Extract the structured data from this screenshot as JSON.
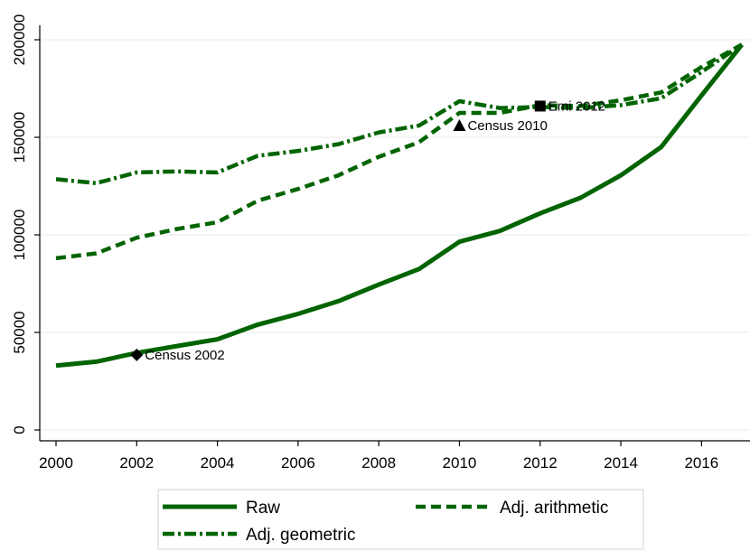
{
  "chart_data": {
    "type": "line",
    "title": "",
    "xlabel": "",
    "ylabel": "",
    "xlim": [
      2000,
      2017
    ],
    "ylim": [
      0,
      200000
    ],
    "x_ticks": [
      2000,
      2002,
      2004,
      2006,
      2008,
      2010,
      2012,
      2014,
      2016
    ],
    "x_tick_labels": [
      "2000",
      "2002",
      "2004",
      "2006",
      "2008",
      "2010",
      "2012",
      "2014",
      "2016"
    ],
    "y_ticks": [
      0,
      50000,
      100000,
      150000,
      200000
    ],
    "y_tick_labels": [
      "0",
      "50000",
      "100000",
      "150000",
      "200000"
    ],
    "grid": "horizontal",
    "legend_position": "bottom",
    "x": [
      2000,
      2001,
      2002,
      2003,
      2004,
      2005,
      2006,
      2007,
      2008,
      2009,
      2010,
      2011,
      2012,
      2013,
      2014,
      2015,
      2016,
      2017
    ],
    "series": [
      {
        "name": "Raw",
        "style": "solid",
        "color": "#006400",
        "values": [
          33000,
          35000,
          39500,
          43000,
          46500,
          54000,
          59500,
          66000,
          74500,
          82500,
          96500,
          102000,
          111000,
          119000,
          130500,
          145000,
          171500,
          197500
        ]
      },
      {
        "name": "Adj. arithmetic",
        "style": "dash",
        "color": "#006400",
        "values": [
          88000,
          90500,
          98500,
          103000,
          106500,
          117500,
          123500,
          130500,
          140000,
          147500,
          162500,
          162500,
          166500,
          166000,
          169000,
          173000,
          186000,
          197500
        ]
      },
      {
        "name": "Adj. geometric",
        "style": "dashdot",
        "color": "#006400",
        "values": [
          128500,
          126500,
          132000,
          132500,
          132000,
          140500,
          143000,
          146500,
          152500,
          156000,
          168500,
          165000,
          165500,
          165000,
          166500,
          170000,
          183500,
          197500
        ]
      }
    ],
    "annotations": [
      {
        "label": "Census 2002",
        "x": 2002,
        "y": 38500,
        "marker": "diamond"
      },
      {
        "label": "Census 2010",
        "x": 2010,
        "y": 156000,
        "marker": "triangle"
      },
      {
        "label": "Emi 2012",
        "x": 2012,
        "y": 166000,
        "marker": "square"
      }
    ]
  }
}
